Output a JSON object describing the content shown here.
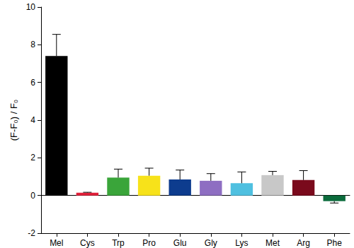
{
  "chart_data": {
    "type": "bar",
    "ylabel": "(F-F₀) / F₀",
    "categories": [
      "Mel",
      "Cys",
      "Trp",
      "Pro",
      "Glu",
      "Gly",
      "Lys",
      "Met",
      "Arg",
      "Phe"
    ],
    "values": [
      7.4,
      0.15,
      0.95,
      1.05,
      0.85,
      0.78,
      0.65,
      1.08,
      0.82,
      -0.3
    ],
    "errors": [
      1.15,
      0.02,
      0.45,
      0.4,
      0.5,
      0.38,
      0.6,
      0.2,
      0.5,
      0.1
    ],
    "colors": [
      "#000000",
      "#e0203a",
      "#3aa53a",
      "#f7e21a",
      "#0d3c8e",
      "#8e6ec2",
      "#4fc0e0",
      "#c8c8c8",
      "#7a0a1c",
      "#0b6b3c"
    ],
    "ylim": [
      -2,
      10
    ],
    "yticks": [
      -2,
      0,
      2,
      4,
      6,
      8,
      10
    ],
    "grid": false
  }
}
